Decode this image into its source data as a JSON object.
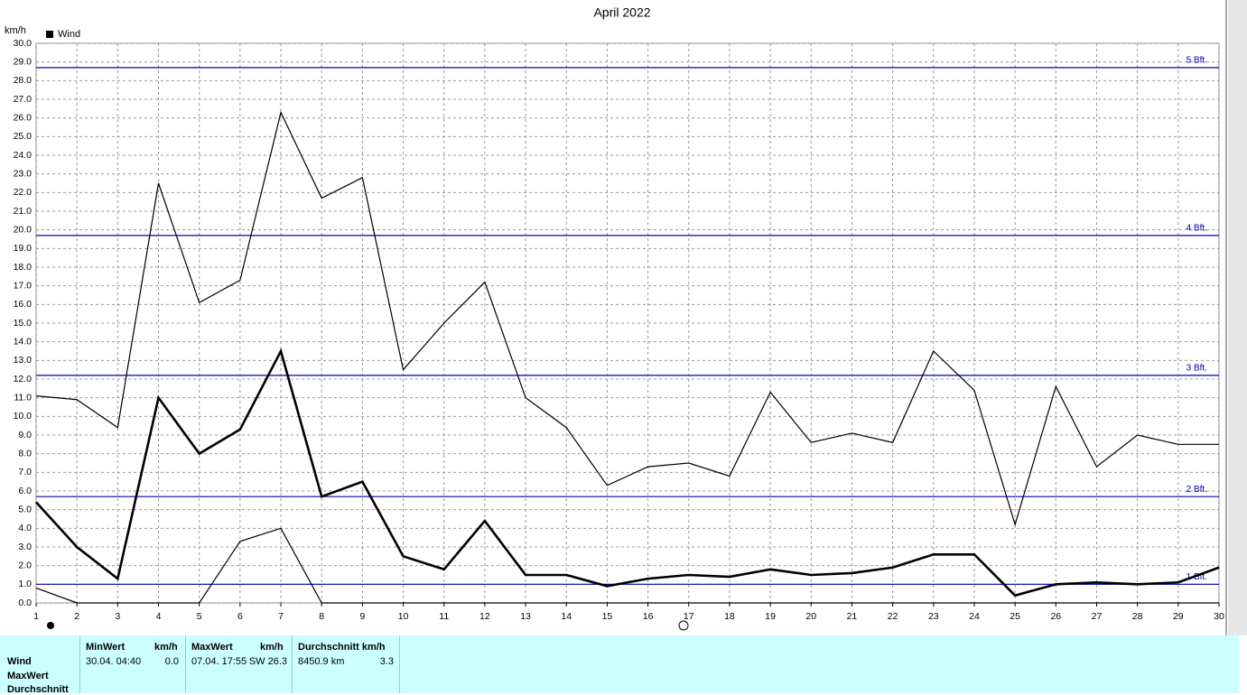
{
  "chart_data": {
    "type": "line",
    "title": "April 2022",
    "y_label": "km/h",
    "legend_label": "Wind",
    "legend_color": "#000000",
    "x": [
      1,
      2,
      3,
      4,
      5,
      6,
      7,
      8,
      9,
      10,
      11,
      12,
      13,
      14,
      15,
      16,
      17,
      18,
      19,
      20,
      21,
      22,
      23,
      24,
      25,
      26,
      27,
      28,
      29,
      30
    ],
    "xlim": [
      1,
      30
    ],
    "xticks": [
      1,
      2,
      3,
      4,
      5,
      6,
      7,
      8,
      9,
      10,
      11,
      12,
      13,
      14,
      15,
      16,
      17,
      18,
      19,
      20,
      21,
      22,
      23,
      24,
      25,
      26,
      27,
      28,
      29,
      30
    ],
    "ylim": [
      0,
      30
    ],
    "yticks": [
      {
        "value": 0,
        "label": "0.0"
      },
      {
        "value": 1,
        "label": "1.0"
      },
      {
        "value": 2,
        "label": "2.0"
      },
      {
        "value": 3,
        "label": "3.0"
      },
      {
        "value": 4,
        "label": "4.0"
      },
      {
        "value": 5,
        "label": "5.0"
      },
      {
        "value": 6,
        "label": "6.0"
      },
      {
        "value": 7,
        "label": "7.0"
      },
      {
        "value": 8,
        "label": "8.0"
      },
      {
        "value": 9,
        "label": "9.0"
      },
      {
        "value": 10,
        "label": "10.0"
      },
      {
        "value": 11,
        "label": "11.0"
      },
      {
        "value": 12,
        "label": "12.0"
      },
      {
        "value": 13,
        "label": "13.0"
      },
      {
        "value": 14,
        "label": "14.0"
      },
      {
        "value": 15,
        "label": "15.0"
      },
      {
        "value": 16,
        "label": "16.0"
      },
      {
        "value": 17,
        "label": "17.0"
      },
      {
        "value": 18,
        "label": "18.0"
      },
      {
        "value": 19,
        "label": "19.0"
      },
      {
        "value": 20,
        "label": "20.0"
      },
      {
        "value": 21,
        "label": "21.0"
      },
      {
        "value": 22,
        "label": "22.0"
      },
      {
        "value": 23,
        "label": "23.0"
      },
      {
        "value": 24,
        "label": "24.0"
      },
      {
        "value": 25,
        "label": "25.0"
      },
      {
        "value": 26,
        "label": "26.0"
      },
      {
        "value": 27,
        "label": "27.0"
      },
      {
        "value": 28,
        "label": "28.0"
      },
      {
        "value": 29,
        "label": "29.0"
      },
      {
        "value": 30,
        "label": "30.0"
      }
    ],
    "grid": true,
    "series": [
      {
        "color": "#000000",
        "width": 1.2,
        "values": [
          11.1,
          10.9,
          9.4,
          22.5,
          16.1,
          17.3,
          26.3,
          21.7,
          22.8,
          12.5,
          15.0,
          17.2,
          11.0,
          9.4,
          6.3,
          7.3,
          7.5,
          6.8,
          11.3,
          8.6,
          9.1,
          8.6,
          13.5,
          11.4,
          4.2,
          11.6,
          7.3,
          9.0,
          8.5,
          8.5
        ]
      },
      {
        "color": "#000000",
        "width": 2.6,
        "values": [
          5.4,
          3.0,
          1.3,
          11.0,
          8.0,
          9.3,
          13.5,
          5.7,
          6.5,
          2.5,
          1.8,
          4.4,
          1.5,
          1.5,
          0.9,
          1.3,
          1.5,
          1.4,
          1.8,
          1.5,
          1.6,
          1.9,
          2.6,
          2.6,
          0.4,
          1.0,
          1.1,
          1.0,
          1.1,
          1.9
        ]
      },
      {
        "color": "#000000",
        "width": 1.2,
        "values": [
          0.8,
          0,
          0,
          0,
          0,
          3.3,
          4.0,
          0,
          0,
          0,
          0,
          0,
          0,
          0,
          0,
          0,
          0,
          0,
          0,
          0,
          0,
          0,
          0,
          0,
          0,
          0,
          0,
          0,
          0,
          0
        ]
      }
    ],
    "reference_color": "#0000b0",
    "reference_lines": [
      {
        "value": 1.0,
        "label": "1 Bft."
      },
      {
        "value": 5.7,
        "label": "2 Bft."
      },
      {
        "value": 12.2,
        "label": "3 Bft."
      },
      {
        "value": 19.7,
        "label": "4 Bft."
      },
      {
        "value": 28.7,
        "label": "5 Bft."
      }
    ]
  },
  "stats": {
    "row_labels": [
      "Wind",
      "MaxWert",
      "Durchschnitt"
    ],
    "columns": [
      {
        "header": "MinWert",
        "unit": "km/h",
        "time": "30.04.  04:40",
        "value": "0.0"
      },
      {
        "header": "MaxWert",
        "unit": "km/h",
        "time": "07.04.  17:55",
        "value": "SW 26.3"
      },
      {
        "header": "Durchschnitt km/h",
        "time": "8450.9 km",
        "value": "3.3"
      }
    ]
  }
}
